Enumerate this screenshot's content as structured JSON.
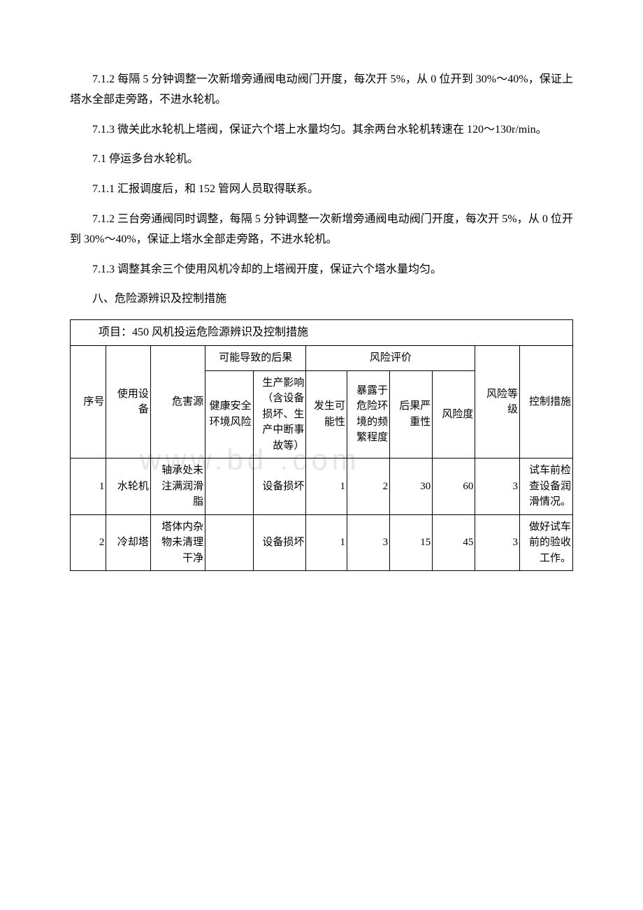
{
  "paragraphs": {
    "p1": "7.1.2 每隔 5 分钟调整一次新增旁通阀电动阀门开度，每次开 5%，从 0 位开到 30%～40%，保证上塔水全部走旁路，不进水轮机。",
    "p2": "7.1.3 微关此水轮机上塔阀，保证六个塔上水量均匀。其余两台水轮机转速在 120～130r/min。",
    "p3": "7.1 停运多台水轮机。",
    "p4": "7.1.1 汇报调度后，和 152 管网人员取得联系。",
    "p5": "7.1.2 三台旁通阀同时调整，每隔 5 分钟调整一次新增旁通阀电动阀门开度，每次开 5%，从 0 位开到 30%～40%，保证上塔水全部走旁路，不进水轮机。",
    "p6": "7.1.3 调整其余三个使用风机冷却的上塔阀开度，保证六个塔水量均匀。",
    "p7": "八、危险源辨识及控制措施"
  },
  "table": {
    "title": "项目：450 风机投运危险源辨识及控制措施",
    "headers": {
      "seq": "序号",
      "equipment": "使用设备",
      "hazard": "危害源",
      "consequence_group": "可能导致的后果",
      "health": "健康安全环境风险",
      "production": "生产影响（含设备损坏、生产中断事故等）",
      "risk_eval_group": "风险评价",
      "possibility": "发生可能性",
      "exposure": "暴露于危险环境的频繁程度",
      "severity": "后果严重性",
      "risk_degree": "风险度",
      "risk_level": "风险等级",
      "control": "控制措施"
    },
    "rows": [
      {
        "seq": "1",
        "equipment": "水轮机",
        "hazard": "轴承处未注满润滑脂",
        "health": "",
        "production": "设备损坏",
        "possibility": "1",
        "exposure": "2",
        "severity": "30",
        "risk_degree": "60",
        "risk_level": "3",
        "control": "试车前检查设备润滑情况。"
      },
      {
        "seq": "2",
        "equipment": "冷却塔",
        "hazard": "塔体内杂物未清理干净",
        "health": "",
        "production": "设备损坏",
        "possibility": "1",
        "exposure": "3",
        "severity": "15",
        "risk_degree": "45",
        "risk_level": "3",
        "control": "做好试车前的验收工作。"
      }
    ]
  },
  "style": {
    "page_bg": "#ffffff",
    "text_color": "#000000",
    "border_color": "#000000",
    "body_fontsize": 16,
    "cell_fontsize": 15,
    "watermark_color": "#e6e6e6"
  },
  "watermark": "www.bd    .com"
}
